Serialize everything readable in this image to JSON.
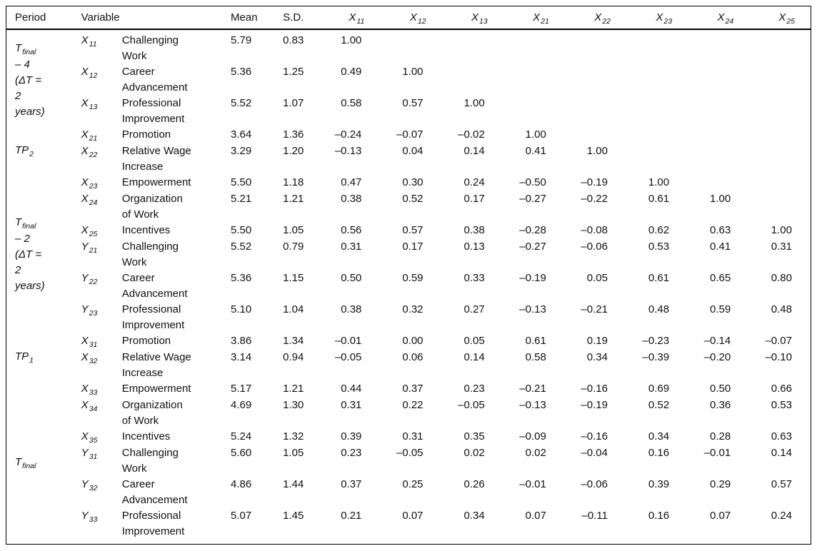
{
  "table": {
    "headers": {
      "period": "Period",
      "variable": "Variable",
      "mean": "Mean",
      "sd": "S.D.",
      "corr": [
        {
          "base": "X",
          "sub": "11"
        },
        {
          "base": "X",
          "sub": "12"
        },
        {
          "base": "X",
          "sub": "13"
        },
        {
          "base": "X",
          "sub": "21"
        },
        {
          "base": "X",
          "sub": "22"
        },
        {
          "base": "X",
          "sub": "23"
        },
        {
          "base": "X",
          "sub": "24"
        },
        {
          "base": "X",
          "sub": "25"
        }
      ]
    },
    "groups": [
      {
        "start": 0,
        "span": 3,
        "label": {
          "base": "T",
          "sub": "final",
          "rest": "\n– 4\n(ΔT =\n2\nyears)"
        }
      },
      {
        "start": 3,
        "span": 2,
        "label": {
          "base": "TP",
          "sub": "2",
          "rest": ""
        }
      },
      {
        "start": 5,
        "span": 6,
        "label": {
          "base": "T",
          "sub": "final",
          "rest": "\n– 2\n(ΔT =\n2\nyears)"
        }
      },
      {
        "start": 11,
        "span": 2,
        "label": {
          "base": "TP",
          "sub": "1",
          "rest": ""
        }
      },
      {
        "start": 13,
        "span": 6,
        "label": {
          "base": "T",
          "sub": "final",
          "rest": ""
        }
      }
    ],
    "rows": [
      {
        "var": {
          "base": "X",
          "sub": "11"
        },
        "desc": "Challenging\nWork",
        "mean": "5.79",
        "sd": "0.83",
        "corr": [
          "1.00",
          "",
          "",
          "",
          "",
          "",
          "",
          ""
        ]
      },
      {
        "var": {
          "base": "X",
          "sub": "12"
        },
        "desc": "Career\nAdvancement",
        "mean": "5.36",
        "sd": "1.25",
        "corr": [
          "0.49",
          "1.00",
          "",
          "",
          "",
          "",
          "",
          ""
        ]
      },
      {
        "var": {
          "base": "X",
          "sub": "13"
        },
        "desc": "Professional\nImprovement",
        "mean": "5.52",
        "sd": "1.07",
        "corr": [
          "0.58",
          "0.57",
          "1.00",
          "",
          "",
          "",
          "",
          ""
        ]
      },
      {
        "var": {
          "base": "X",
          "sub": "21"
        },
        "desc": "Promotion",
        "mean": "3.64",
        "sd": "1.36",
        "corr": [
          "–0.24",
          "–0.07",
          "–0.02",
          "1.00",
          "",
          "",
          "",
          ""
        ]
      },
      {
        "var": {
          "base": "X",
          "sub": "22"
        },
        "desc": "Relative Wage\nIncrease",
        "mean": "3.29",
        "sd": "1.20",
        "corr": [
          "–0.13",
          "0.04",
          "0.14",
          "0.41",
          "1.00",
          "",
          "",
          ""
        ]
      },
      {
        "var": {
          "base": "X",
          "sub": "23"
        },
        "desc": "Empowerment",
        "mean": "5.50",
        "sd": "1.18",
        "corr": [
          "0.47",
          "0.30",
          "0.24",
          "–0.50",
          "–0.19",
          "1.00",
          "",
          ""
        ]
      },
      {
        "var": {
          "base": "X",
          "sub": "24"
        },
        "desc": "Organization\nof Work",
        "mean": "5.21",
        "sd": "1.21",
        "corr": [
          "0.38",
          "0.52",
          "0.17",
          "–0.27",
          "–0.22",
          "0.61",
          "1.00",
          ""
        ]
      },
      {
        "var": {
          "base": "X",
          "sub": "25"
        },
        "desc": "Incentives",
        "mean": "5.50",
        "sd": "1.05",
        "corr": [
          "0.56",
          "0.57",
          "0.38",
          "–0.28",
          "–0.08",
          "0.62",
          "0.63",
          "1.00"
        ]
      },
      {
        "var": {
          "base": "Y",
          "sub": "21"
        },
        "desc": "Challenging\nWork",
        "mean": "5.52",
        "sd": "0.79",
        "corr": [
          "0.31",
          "0.17",
          "0.13",
          "–0.27",
          "–0.06",
          "0.53",
          "0.41",
          "0.31"
        ]
      },
      {
        "var": {
          "base": "Y",
          "sub": "22"
        },
        "desc": "Career\nAdvancement",
        "mean": "5.36",
        "sd": "1.15",
        "corr": [
          "0.50",
          "0.59",
          "0.33",
          "–0.19",
          "0.05",
          "0.61",
          "0.65",
          "0.80"
        ]
      },
      {
        "var": {
          "base": "Y",
          "sub": "23"
        },
        "desc": "Professional\nImprovement",
        "mean": "5.10",
        "sd": "1.04",
        "corr": [
          "0.38",
          "0.32",
          "0.27",
          "–0.13",
          "–0.21",
          "0.48",
          "0.59",
          "0.48"
        ]
      },
      {
        "var": {
          "base": "X",
          "sub": "31"
        },
        "desc": "Promotion",
        "mean": "3.86",
        "sd": "1.34",
        "corr": [
          "–0.01",
          "0.00",
          "0.05",
          "0.61",
          "0.19",
          "–0.23",
          "–0.14",
          "–0.07"
        ]
      },
      {
        "var": {
          "base": "X",
          "sub": "32"
        },
        "desc": "Relative Wage\nIncrease",
        "mean": "3.14",
        "sd": "0.94",
        "corr": [
          "–0.05",
          "0.06",
          "0.14",
          "0.58",
          "0.34",
          "–0.39",
          "–0.20",
          "–0.10"
        ]
      },
      {
        "var": {
          "base": "X",
          "sub": "33"
        },
        "desc": "Empowerment",
        "mean": "5.17",
        "sd": "1.21",
        "corr": [
          "0.44",
          "0.37",
          "0.23",
          "–0.21",
          "–0.16",
          "0.69",
          "0.50",
          "0.66"
        ]
      },
      {
        "var": {
          "base": "X",
          "sub": "34"
        },
        "desc": "Organization\nof Work",
        "mean": "4.69",
        "sd": "1.30",
        "corr": [
          "0.31",
          "0.22",
          "–0.05",
          "–0.13",
          "–0.19",
          "0.52",
          "0.36",
          "0.53"
        ]
      },
      {
        "var": {
          "base": "X",
          "sub": "35"
        },
        "desc": "Incentives",
        "mean": "5.24",
        "sd": "1.32",
        "corr": [
          "0.39",
          "0.31",
          "0.35",
          "–0.09",
          "–0.16",
          "0.34",
          "0.28",
          "0.63"
        ]
      },
      {
        "var": {
          "base": "Y",
          "sub": "31"
        },
        "desc": "Challenging\nWork",
        "mean": "5.60",
        "sd": "1.05",
        "corr": [
          "0.23",
          "–0.05",
          "0.02",
          "0.02",
          "–0.04",
          "0.16",
          "–0.01",
          "0.14"
        ]
      },
      {
        "var": {
          "base": "Y",
          "sub": "32"
        },
        "desc": "Career\nAdvancement",
        "mean": "4.86",
        "sd": "1.44",
        "corr": [
          "0.37",
          "0.25",
          "0.26",
          "–0.01",
          "–0.06",
          "0.39",
          "0.29",
          "0.57"
        ]
      },
      {
        "var": {
          "base": "Y",
          "sub": "33"
        },
        "desc": "Professional\nImprovement",
        "mean": "5.07",
        "sd": "1.45",
        "corr": [
          "0.21",
          "0.07",
          "0.34",
          "0.07",
          "–0.11",
          "0.16",
          "0.07",
          "0.24"
        ]
      }
    ]
  }
}
